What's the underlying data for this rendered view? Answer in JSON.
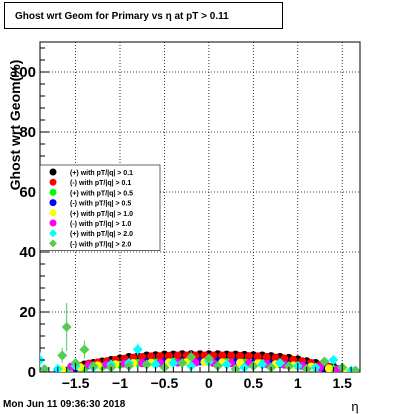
{
  "chart_data": {
    "type": "scatter",
    "title": "Ghost wrt Geom for Primary vs   η at pT > 0.11",
    "xlabel": "η",
    "ylabel": "Ghost wrt Geom(%)",
    "xlim": [
      -1.9,
      1.7
    ],
    "ylim": [
      0,
      110
    ],
    "xticks": [
      -1.5,
      -1,
      -0.5,
      0,
      0.5,
      1,
      1.5
    ],
    "xticklabels": [
      "−1.5",
      "−1",
      "−0.5",
      "0",
      "0.5",
      "1",
      "1.5"
    ],
    "yticks": [
      0,
      20,
      40,
      60,
      80,
      100
    ],
    "yticklabels": [
      "0",
      "20",
      "40",
      "60",
      "80",
      "100"
    ],
    "grid": true,
    "legend_position": "left-middle",
    "series": [
      {
        "name": "(+) with pT/|q| > 0.1",
        "color": "#000000",
        "marker": "circle",
        "x": [
          -1.5,
          -1.4,
          -1.3,
          -1.2,
          -1.1,
          -1.0,
          -0.9,
          -0.8,
          -0.7,
          -0.6,
          -0.5,
          -0.4,
          -0.3,
          -0.2,
          -0.1,
          0.0,
          0.1,
          0.2,
          0.3,
          0.4,
          0.5,
          0.6,
          0.7,
          0.8,
          0.9,
          1.0,
          1.1,
          1.2,
          1.3,
          1.4,
          1.5
        ],
        "y": [
          1.5,
          2.5,
          3.0,
          3.5,
          4.0,
          4.5,
          5.0,
          5.2,
          5.5,
          5.6,
          5.8,
          5.8,
          5.9,
          5.9,
          5.9,
          5.9,
          5.9,
          5.8,
          5.8,
          5.7,
          5.6,
          5.5,
          5.3,
          5.0,
          4.7,
          4.2,
          3.6,
          3.0,
          2.5,
          1.8,
          0.8
        ]
      },
      {
        "name": "(-) with pT/|q| > 0.1",
        "color": "#ff0000",
        "marker": "circle",
        "x": [
          -1.45,
          -1.35,
          -1.25,
          -1.15,
          -1.05,
          -0.95,
          -0.85,
          -0.75,
          -0.65,
          -0.55,
          -0.45,
          -0.35,
          -0.25,
          -0.15,
          -0.05,
          0.05,
          0.15,
          0.25,
          0.35,
          0.45,
          0.55,
          0.65,
          0.75,
          0.85,
          0.95,
          1.05,
          1.15,
          1.25,
          1.35,
          1.45
        ],
        "y": [
          2.0,
          2.8,
          3.2,
          3.6,
          4.0,
          4.4,
          4.8,
          5.0,
          5.2,
          5.3,
          5.4,
          5.5,
          5.5,
          5.5,
          5.5,
          5.5,
          5.5,
          5.5,
          5.4,
          5.3,
          5.2,
          5.0,
          4.8,
          4.5,
          4.1,
          3.6,
          3.0,
          2.4,
          1.8,
          1.0
        ]
      },
      {
        "name": "(+) with pT/|q| > 0.5",
        "color": "#00ff00",
        "marker": "circle",
        "x": [
          -1.6,
          -1.4,
          -1.2,
          -1.0,
          -0.8,
          -0.6,
          -0.4,
          -0.2,
          0.0,
          0.2,
          0.4,
          0.6,
          0.8,
          1.0,
          1.2,
          1.4,
          1.6
        ],
        "y": [
          0.5,
          1.2,
          1.8,
          2.4,
          3.0,
          3.2,
          3.5,
          3.4,
          3.6,
          3.3,
          3.1,
          2.8,
          2.6,
          2.0,
          1.6,
          1.0,
          0.3
        ]
      },
      {
        "name": "(-) with pT/|q| > 0.5",
        "color": "#0000ff",
        "marker": "circle",
        "x": [
          -1.7,
          -1.5,
          -1.3,
          -1.1,
          -0.9,
          -0.7,
          -0.5,
          -0.3,
          -0.1,
          0.1,
          0.3,
          0.5,
          0.7,
          0.9,
          1.1,
          1.3,
          1.5
        ],
        "y": [
          0.6,
          1.4,
          2.0,
          2.6,
          3.0,
          3.2,
          3.3,
          3.4,
          3.5,
          3.4,
          3.2,
          3.0,
          2.7,
          2.3,
          1.8,
          1.2,
          0.4
        ]
      },
      {
        "name": "(+) with pT/|q| > 1.0",
        "color": "#ffff00",
        "marker": "circle",
        "x": [
          -1.65,
          -1.45,
          -1.25,
          -1.05,
          -0.85,
          -0.65,
          -0.45,
          -0.25,
          -0.05,
          0.15,
          0.35,
          0.55,
          0.75,
          0.95,
          1.15,
          1.35,
          1.55
        ],
        "y": [
          0.8,
          1.6,
          2.2,
          2.6,
          3.0,
          3.1,
          3.2,
          3.3,
          3.3,
          3.2,
          3.1,
          2.9,
          2.6,
          2.2,
          1.8,
          1.2,
          0.5
        ]
      },
      {
        "name": "(-) with pT/|q| > 1.0",
        "color": "#ff00ff",
        "marker": "circle",
        "x": [
          -1.55,
          -1.35,
          -1.15,
          -0.95,
          -0.75,
          -0.55,
          -0.35,
          -0.15,
          0.05,
          0.25,
          0.45,
          0.65,
          0.85,
          1.05,
          1.25,
          1.45
        ],
        "y": [
          1.8,
          2.2,
          2.4,
          2.8,
          2.9,
          3.0,
          3.1,
          3.1,
          3.0,
          2.9,
          2.8,
          2.6,
          2.4,
          2.0,
          1.6,
          0.9
        ]
      },
      {
        "name": "(+) with pT/|q| > 2.0",
        "color": "#00ffff",
        "marker": "diamond",
        "x": [
          -1.9,
          -1.7,
          -1.5,
          -1.3,
          -1.1,
          -0.9,
          -0.8,
          -0.6,
          -0.4,
          -0.2,
          0.0,
          0.2,
          0.4,
          0.6,
          0.8,
          1.0,
          1.2,
          1.4,
          1.6
        ],
        "y": [
          4.0,
          1.0,
          2.0,
          1.5,
          2.5,
          3.0,
          7.5,
          2.5,
          3.0,
          2.0,
          3.5,
          2.5,
          1.5,
          2.5,
          3.0,
          2.0,
          1.5,
          4.0,
          0.5
        ],
        "yerr": [
          2.5,
          1.5,
          1.5,
          1.0,
          1.5,
          1.5,
          2.0,
          1.0,
          1.0,
          1.0,
          1.5,
          1.0,
          1.0,
          1.0,
          1.0,
          1.0,
          1.0,
          1.5,
          1.0
        ]
      },
      {
        "name": "(-) with pT/|q| > 2.0",
        "color": "#55cc55",
        "marker": "diamond",
        "x": [
          -1.85,
          -1.65,
          -1.6,
          -1.5,
          -1.4,
          -1.3,
          -1.1,
          -0.9,
          -0.7,
          -0.5,
          -0.3,
          -0.2,
          0.0,
          0.1,
          0.3,
          0.5,
          0.7,
          0.9,
          1.1,
          1.3,
          1.5,
          1.65
        ],
        "y": [
          1.0,
          5.5,
          15.0,
          3.0,
          7.5,
          2.0,
          1.5,
          2.0,
          2.5,
          1.5,
          3.0,
          5.0,
          4.5,
          2.0,
          1.0,
          2.0,
          1.5,
          2.0,
          1.0,
          3.5,
          1.5,
          0.5
        ],
        "yerr": [
          1.5,
          2.5,
          8.0,
          1.5,
          3.0,
          1.0,
          1.0,
          1.0,
          1.0,
          1.0,
          1.5,
          2.0,
          1.5,
          1.0,
          1.0,
          1.0,
          1.0,
          1.0,
          1.0,
          1.5,
          1.0,
          0.5
        ]
      }
    ]
  },
  "footer": {
    "timestamp": "Mon Jun 11 09:36:30 2018"
  }
}
